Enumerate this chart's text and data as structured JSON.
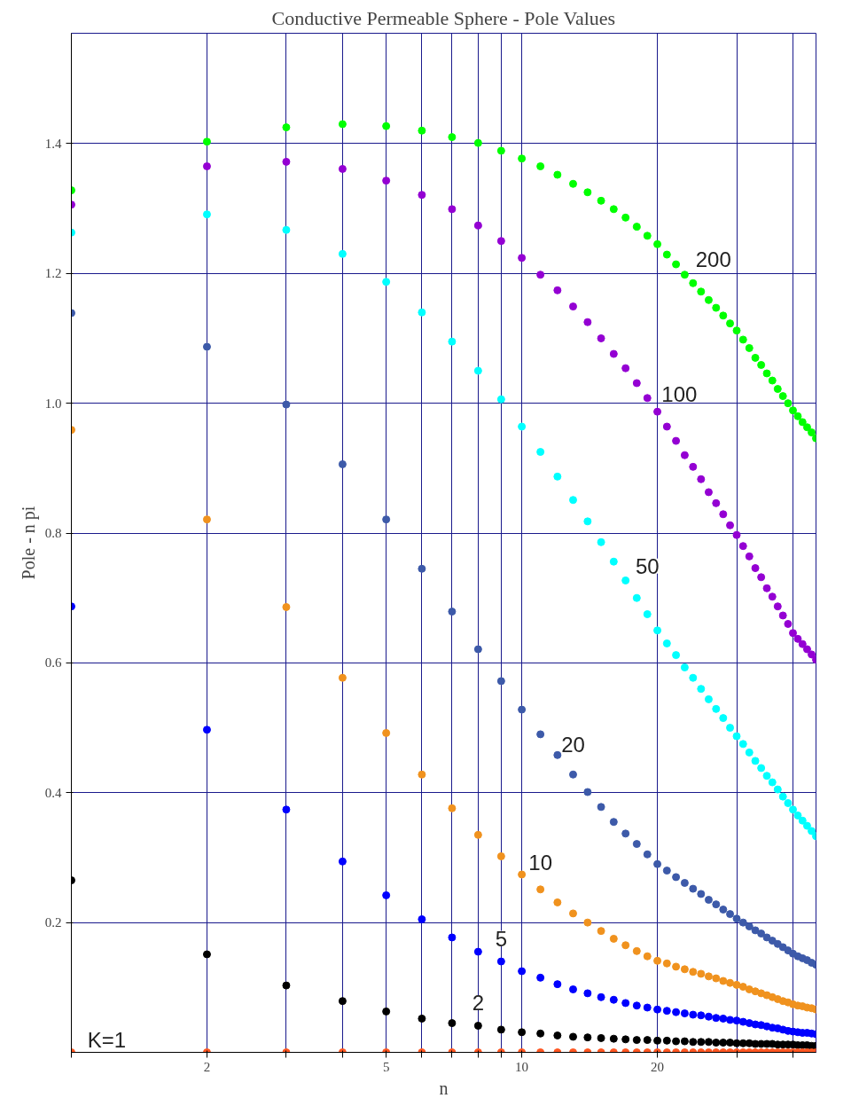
{
  "chart_data": {
    "type": "scatter",
    "title": "Conductive Permeable Sphere - Pole Values",
    "xlabel": "n",
    "ylabel": "Pole - n pi",
    "x": [
      1,
      2,
      3,
      4,
      5,
      6,
      7,
      8,
      9,
      10,
      11,
      12,
      13,
      14,
      15,
      16,
      17,
      18,
      19,
      20,
      21,
      22,
      23,
      24,
      25,
      26,
      27,
      28,
      29,
      30,
      31,
      32,
      33,
      34,
      35,
      36,
      37,
      38,
      39,
      40,
      41,
      42,
      43,
      44,
      45
    ],
    "log": "x",
    "xlim": [
      1,
      45
    ],
    "ylim": [
      0,
      1.57
    ],
    "xticks": [
      {
        "value": 1,
        "label": null
      },
      2,
      {
        "value": 3,
        "label": null
      },
      {
        "value": 4,
        "label": null
      },
      5,
      {
        "value": 6,
        "label": null
      },
      {
        "value": 7,
        "label": null
      },
      {
        "value": 8,
        "label": null
      },
      {
        "value": 9,
        "label": null
      },
      10,
      20,
      {
        "value": 30,
        "label": null
      },
      {
        "value": 40,
        "label": null
      }
    ],
    "yticks": [
      {
        "value": 0.2,
        "label": "0.2"
      },
      {
        "value": 0.4,
        "label": "0.4"
      },
      {
        "value": 0.6,
        "label": "0.6"
      },
      {
        "value": 0.8,
        "label": "0.8"
      },
      {
        "value": 1.0,
        "label": "1.0"
      },
      {
        "value": 1.2,
        "label": "1.2"
      },
      {
        "value": 1.4,
        "label": "1.4"
      }
    ],
    "grid": true,
    "marker": "circle",
    "series": [
      {
        "name": "K=1",
        "color": "#ff5722",
        "values": [
          0,
          0,
          0,
          0,
          0,
          0,
          0,
          0,
          0,
          0,
          0,
          0,
          0,
          0,
          0,
          0,
          0,
          0,
          0,
          0,
          0,
          0,
          0,
          0,
          0,
          0,
          0,
          0,
          0,
          0,
          0,
          0,
          0,
          0,
          0,
          0,
          0,
          0,
          0,
          0,
          0,
          0,
          0,
          0,
          0
        ]
      },
      {
        "name": "2",
        "color": "#000000",
        "values": [
          0.265,
          0.151,
          0.103,
          0.079,
          0.063,
          0.052,
          0.045,
          0.041,
          0.035,
          0.031,
          0.029,
          0.026,
          0.024,
          0.023,
          0.022,
          0.021,
          0.02,
          0.019,
          0.019,
          0.018,
          0.018,
          0.017,
          0.017,
          0.016,
          0.016,
          0.016,
          0.015,
          0.015,
          0.015,
          0.014,
          0.014,
          0.014,
          0.013,
          0.013,
          0.013,
          0.013,
          0.012,
          0.012,
          0.012,
          0.012,
          0.011,
          0.011,
          0.011,
          0.01,
          0.01
        ]
      },
      {
        "name": "5",
        "color": "#0000ff",
        "values": [
          0.687,
          0.497,
          0.374,
          0.294,
          0.242,
          0.205,
          0.177,
          0.155,
          0.14,
          0.125,
          0.115,
          0.105,
          0.097,
          0.091,
          0.085,
          0.081,
          0.076,
          0.072,
          0.069,
          0.066,
          0.064,
          0.062,
          0.06,
          0.058,
          0.057,
          0.055,
          0.053,
          0.052,
          0.05,
          0.049,
          0.047,
          0.045,
          0.043,
          0.042,
          0.04,
          0.038,
          0.037,
          0.035,
          0.033,
          0.032,
          0.031,
          0.03,
          0.03,
          0.029,
          0.028
        ]
      },
      {
        "name": "10",
        "color": "#f0921e",
        "values": [
          0.959,
          0.821,
          0.686,
          0.577,
          0.492,
          0.428,
          0.376,
          0.335,
          0.302,
          0.274,
          0.251,
          0.231,
          0.214,
          0.2,
          0.187,
          0.175,
          0.165,
          0.156,
          0.148,
          0.141,
          0.137,
          0.132,
          0.128,
          0.124,
          0.121,
          0.117,
          0.114,
          0.11,
          0.107,
          0.104,
          0.101,
          0.097,
          0.094,
          0.091,
          0.088,
          0.085,
          0.082,
          0.079,
          0.077,
          0.074,
          0.072,
          0.071,
          0.069,
          0.068,
          0.066
        ]
      },
      {
        "name": "20",
        "color": "#3d5aa9",
        "values": [
          1.139,
          1.087,
          0.998,
          0.906,
          0.821,
          0.745,
          0.679,
          0.621,
          0.572,
          0.528,
          0.49,
          0.458,
          0.428,
          0.401,
          0.378,
          0.355,
          0.337,
          0.321,
          0.305,
          0.29,
          0.28,
          0.27,
          0.261,
          0.252,
          0.244,
          0.235,
          0.228,
          0.22,
          0.213,
          0.206,
          0.2,
          0.194,
          0.188,
          0.183,
          0.177,
          0.172,
          0.167,
          0.162,
          0.157,
          0.152,
          0.148,
          0.145,
          0.142,
          0.138,
          0.135
        ]
      },
      {
        "name": "50",
        "color": "#00ffff",
        "values": [
          1.263,
          1.291,
          1.267,
          1.23,
          1.187,
          1.14,
          1.095,
          1.05,
          1.006,
          0.964,
          0.925,
          0.887,
          0.851,
          0.818,
          0.786,
          0.756,
          0.727,
          0.7,
          0.675,
          0.65,
          0.63,
          0.612,
          0.593,
          0.577,
          0.56,
          0.544,
          0.529,
          0.515,
          0.5,
          0.487,
          0.475,
          0.462,
          0.449,
          0.438,
          0.426,
          0.416,
          0.405,
          0.394,
          0.384,
          0.374,
          0.365,
          0.357,
          0.349,
          0.341,
          0.333
        ]
      },
      {
        "name": "100",
        "color": "#9400d3",
        "values": [
          1.306,
          1.365,
          1.372,
          1.361,
          1.343,
          1.321,
          1.299,
          1.274,
          1.25,
          1.224,
          1.198,
          1.174,
          1.149,
          1.125,
          1.1,
          1.076,
          1.054,
          1.031,
          1.008,
          0.987,
          0.964,
          0.942,
          0.92,
          0.902,
          0.883,
          0.863,
          0.846,
          0.829,
          0.812,
          0.797,
          0.78,
          0.764,
          0.746,
          0.732,
          0.715,
          0.702,
          0.687,
          0.673,
          0.66,
          0.646,
          0.637,
          0.629,
          0.621,
          0.613,
          0.605
        ]
      },
      {
        "name": "200",
        "color": "#00ff00",
        "values": [
          1.328,
          1.403,
          1.425,
          1.43,
          1.427,
          1.42,
          1.41,
          1.401,
          1.389,
          1.377,
          1.365,
          1.352,
          1.338,
          1.325,
          1.312,
          1.299,
          1.286,
          1.272,
          1.258,
          1.245,
          1.229,
          1.214,
          1.198,
          1.185,
          1.172,
          1.159,
          1.147,
          1.135,
          1.123,
          1.112,
          1.098,
          1.085,
          1.07,
          1.059,
          1.046,
          1.035,
          1.022,
          1.011,
          1.0,
          0.989,
          0.98,
          0.971,
          0.963,
          0.955,
          0.946
        ]
      }
    ]
  }
}
